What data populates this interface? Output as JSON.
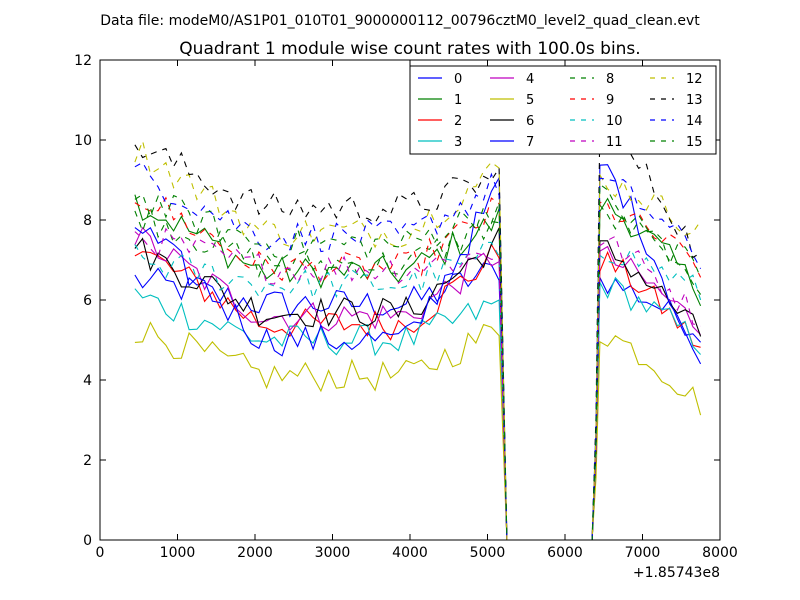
{
  "header": {
    "data_file": "Data file: modeM0/AS1P01_010T01_9000000112_00796cztM0_level2_quad_clean.evt"
  },
  "chart_data": {
    "type": "line",
    "title": "Quadrant 1 module wise count rates with 100.0s bins.",
    "xlabel": "",
    "ylabel": "",
    "x_offset_label": "+1.85743e8",
    "xlim": [
      0,
      8000
    ],
    "ylim": [
      0,
      12
    ],
    "x_ticks": [
      0,
      1000,
      2000,
      3000,
      4000,
      5000,
      6000,
      7000,
      8000
    ],
    "x_tick_labels": [
      "0",
      "1000",
      "2000",
      "3000",
      "4000",
      "5000",
      "6000",
      "7000",
      "8000"
    ],
    "y_ticks": [
      0,
      2,
      4,
      6,
      8,
      10,
      12
    ],
    "y_tick_labels": [
      "0",
      "2",
      "4",
      "6",
      "8",
      "10",
      "12"
    ],
    "grid": false,
    "legend_position": "top-right",
    "legend_columns": 4,
    "segment1": {
      "x_start": 450,
      "x_end": 5150,
      "step": 100
    },
    "gap": {
      "x_drop": 5250,
      "x_rise": 6350,
      "x_flat_end": 6250
    },
    "segment2": {
      "x_start": 6450,
      "x_end": 7750,
      "step": 100
    },
    "series": [
      {
        "name": "0",
        "color": "#0000ff",
        "dash": "solid",
        "start": 6.5,
        "mid": 5.9,
        "end": 6.8,
        "peak2": 6.5,
        "end2": 5.2
      },
      {
        "name": "1",
        "color": "#008000",
        "dash": "solid",
        "start": 8.5,
        "mid": 6.7,
        "end": 8.0,
        "peak2": 8.4,
        "end2": 6.2
      },
      {
        "name": "2",
        "color": "#ff0000",
        "dash": "solid",
        "start": 7.3,
        "mid": 5.4,
        "end": 7.2,
        "peak2": 7.0,
        "end2": 4.8
      },
      {
        "name": "3",
        "color": "#00bfbf",
        "dash": "solid",
        "start": 6.1,
        "mid": 5.0,
        "end": 5.9,
        "peak2": 6.4,
        "end2": 4.9
      },
      {
        "name": "4",
        "color": "#bf00bf",
        "dash": "solid",
        "start": 7.6,
        "mid": 5.6,
        "end": 7.2,
        "peak2": 7.1,
        "end2": 5.3
      },
      {
        "name": "5",
        "color": "#bfbf00",
        "dash": "solid",
        "start": 5.3,
        "mid": 4.1,
        "end": 5.3,
        "peak2": 5.2,
        "end2": 3.4
      },
      {
        "name": "6",
        "color": "#000000",
        "dash": "solid",
        "start": 7.3,
        "mid": 5.7,
        "end": 7.5,
        "peak2": 7.3,
        "end2": 5.1
      },
      {
        "name": "7",
        "color": "#0000ff",
        "dash": "solid",
        "start": 7.9,
        "mid": 5.0,
        "end": 8.8,
        "peak2": 9.4,
        "end2": 4.2
      },
      {
        "name": "8",
        "color": "#008000",
        "dash": "dashed",
        "start": 8.2,
        "mid": 6.9,
        "end": 8.0,
        "peak2": 8.1,
        "end2": 6.7
      },
      {
        "name": "9",
        "color": "#ff0000",
        "dash": "dashed",
        "start": 8.7,
        "mid": 6.8,
        "end": 8.3,
        "peak2": 8.3,
        "end2": 6.8
      },
      {
        "name": "10",
        "color": "#00bfbf",
        "dash": "dashed",
        "start": 7.0,
        "mid": 6.4,
        "end": 7.2,
        "peak2": 7.3,
        "end2": 6.2
      },
      {
        "name": "11",
        "color": "#bf00bf",
        "dash": "dashed",
        "start": 7.6,
        "mid": 6.8,
        "end": 7.2,
        "peak2": 7.5,
        "end2": 5.5
      },
      {
        "name": "12",
        "color": "#bfbf00",
        "dash": "dashed",
        "start": 9.8,
        "mid": 7.7,
        "end": 9.3,
        "peak2": 9.0,
        "end2": 7.7
      },
      {
        "name": "13",
        "color": "#000000",
        "dash": "dashed",
        "start": 9.9,
        "mid": 8.3,
        "end": 9.1,
        "peak2": 10.3,
        "end2": 7.0
      },
      {
        "name": "14",
        "color": "#0000ff",
        "dash": "dashed",
        "start": 9.2,
        "mid": 7.6,
        "end": 8.9,
        "peak2": 9.0,
        "end2": 7.0
      },
      {
        "name": "15",
        "color": "#008000",
        "dash": "dashed",
        "start": 8.6,
        "mid": 7.4,
        "end": 8.4,
        "peak2": 8.6,
        "end2": 6.1
      }
    ]
  }
}
